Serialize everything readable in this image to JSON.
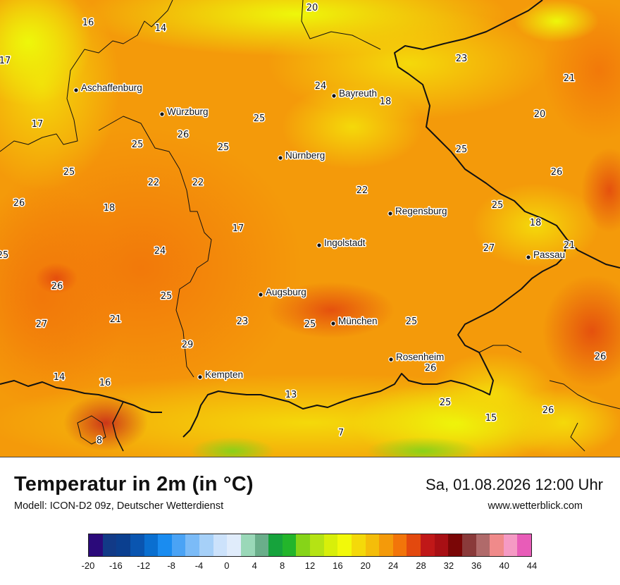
{
  "map": {
    "cities": [
      {
        "name": "Aschaffenburg"
      },
      {
        "name": "Würzburg"
      },
      {
        "name": "Bayreuth"
      },
      {
        "name": "Nürnberg"
      },
      {
        "name": "Regensburg"
      },
      {
        "name": "Ingolstadt"
      },
      {
        "name": "Passau"
      },
      {
        "name": "Augsburg"
      },
      {
        "name": "München"
      },
      {
        "name": "Rosenheim"
      },
      {
        "name": "Kempten"
      }
    ],
    "temperature_labels": [
      "20",
      "16",
      "14",
      "17",
      "24",
      "18",
      "23",
      "21",
      "25",
      "26",
      "20",
      "17",
      "25",
      "25",
      "25",
      "25",
      "22",
      "22",
      "26",
      "26",
      "22",
      "18",
      "25",
      "17",
      "18",
      "21",
      "25",
      "24",
      "27",
      "26",
      "25",
      "21",
      "27",
      "23",
      "25",
      "25",
      "29",
      "26",
      "26",
      "14",
      "16",
      "13",
      "25",
      "15",
      "26",
      "7",
      "8"
    ]
  },
  "footer": {
    "title": "Temperatur in 2m (in °C)",
    "model": "Modell: ICON-D2 09z, Deutscher Wetterdienst",
    "datetime": "Sa, 01.08.2026 12:00 Uhr",
    "website": "www.wetterblick.com"
  },
  "legend": {
    "colors": [
      "#2b0a7a",
      "#123a87",
      "#0b3f8f",
      "#0a55b0",
      "#0a6fd0",
      "#1a8cf0",
      "#4aa3f5",
      "#7bbbf7",
      "#a6d0f8",
      "#cce2fb",
      "#e0ecfb",
      "#9ad8b8",
      "#6aae8a",
      "#16a33c",
      "#23b52b",
      "#86d418",
      "#b5e314",
      "#d8ef0a",
      "#f2f90a",
      "#f4d90a",
      "#f4bd0a",
      "#f49a0a",
      "#f2750a",
      "#e3490e",
      "#c01818",
      "#a80f14",
      "#7a0606",
      "#8a3a3a",
      "#b06a6a",
      "#f08a8a",
      "#f59ac4",
      "#e85cb8"
    ],
    "ticks": [
      "-20",
      "-16",
      "-12",
      "-8",
      "-4",
      "0",
      "4",
      "8",
      "12",
      "16",
      "20",
      "24",
      "28",
      "32",
      "36",
      "40",
      "44"
    ]
  }
}
